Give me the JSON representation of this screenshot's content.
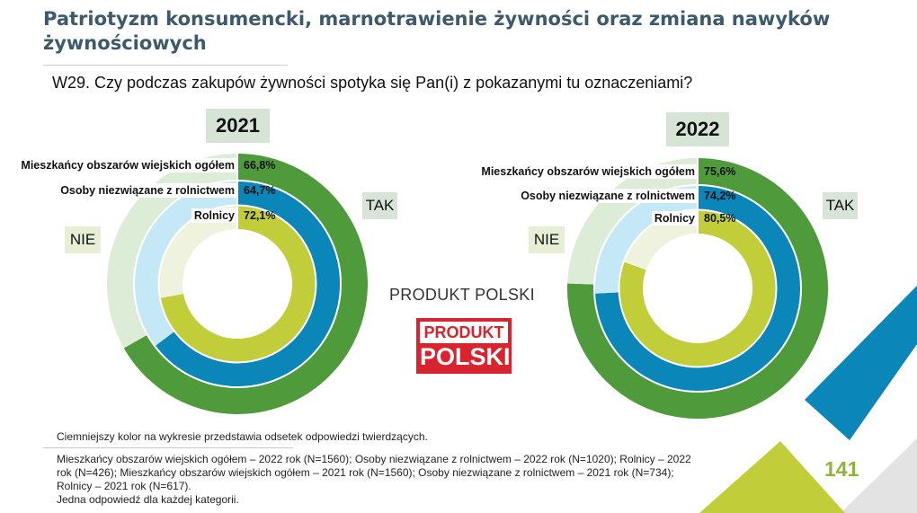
{
  "page": {
    "title": "Patriotyzm konsumencki, marnotrawienie żywności oraz zmiana nawyków żywnościowych",
    "question": "W29. Czy podczas zakupów żywności spotyka się Pan(i) z pokazanymi tu oznaczeniami?",
    "product_caption": "PRODUKT POLSKI",
    "logo": {
      "line1": "PRODUKT",
      "line2": "POLSKI"
    },
    "note": "Ciemniejszy kolor na wykresie przedstawia odsetek odpowiedzi twierdzących.",
    "footnote": "Mieszkańcy obszarów wiejskich ogółem – 2022 rok (N=1560); Osoby niezwiązane z rolnictwem – 2022 rok (N=1020); Rolnicy – 2022 rok (N=426); Mieszkańcy obszarów wiejskich ogółem – 2021 rok (N=1560); Osoby niezwiązane z rolnictwem – 2021 rok (N=734); Rolnicy – 2021 rok (N=617).",
    "footnote2": "Jedna odpowiedź dla każdej kategorii.",
    "page_number": "141"
  },
  "labels": {
    "tak": "TAK",
    "nie": "NIE"
  },
  "colors": {
    "title": "#3d5a6c",
    "outer_yes": "#4f9a3a",
    "outer_no": "#ddecd6",
    "middle_yes": "#0a86b8",
    "middle_no": "#c5e8f6",
    "inner_yes": "#c2cd3a",
    "inner_no": "#eff2dc",
    "deco_blue": "#0a86b8",
    "deco_green": "#c2cd3a",
    "deco_gray": "#e3e3e3"
  },
  "chart_data": [
    {
      "type": "donut",
      "year": "2021",
      "series": [
        {
          "name": "Mieszkańcy obszarów wiejskich ogółem",
          "value": 66.8,
          "label": "66,8%"
        },
        {
          "name": "Osoby niezwiązane z rolnictwem",
          "value": 64.7,
          "label": "64,7%"
        },
        {
          "name": "Rolnicy",
          "value": 72.1,
          "label": "72,1%"
        }
      ]
    },
    {
      "type": "donut",
      "year": "2022",
      "series": [
        {
          "name": "Mieszkańcy obszarów wiejskich ogółem",
          "value": 75.6,
          "label": "75,6%"
        },
        {
          "name": "Osoby niezwiązane z rolnictwem",
          "value": 74.2,
          "label": "74,2%"
        },
        {
          "name": "Rolnicy",
          "value": 80.5,
          "label": "80,5%"
        }
      ]
    }
  ]
}
